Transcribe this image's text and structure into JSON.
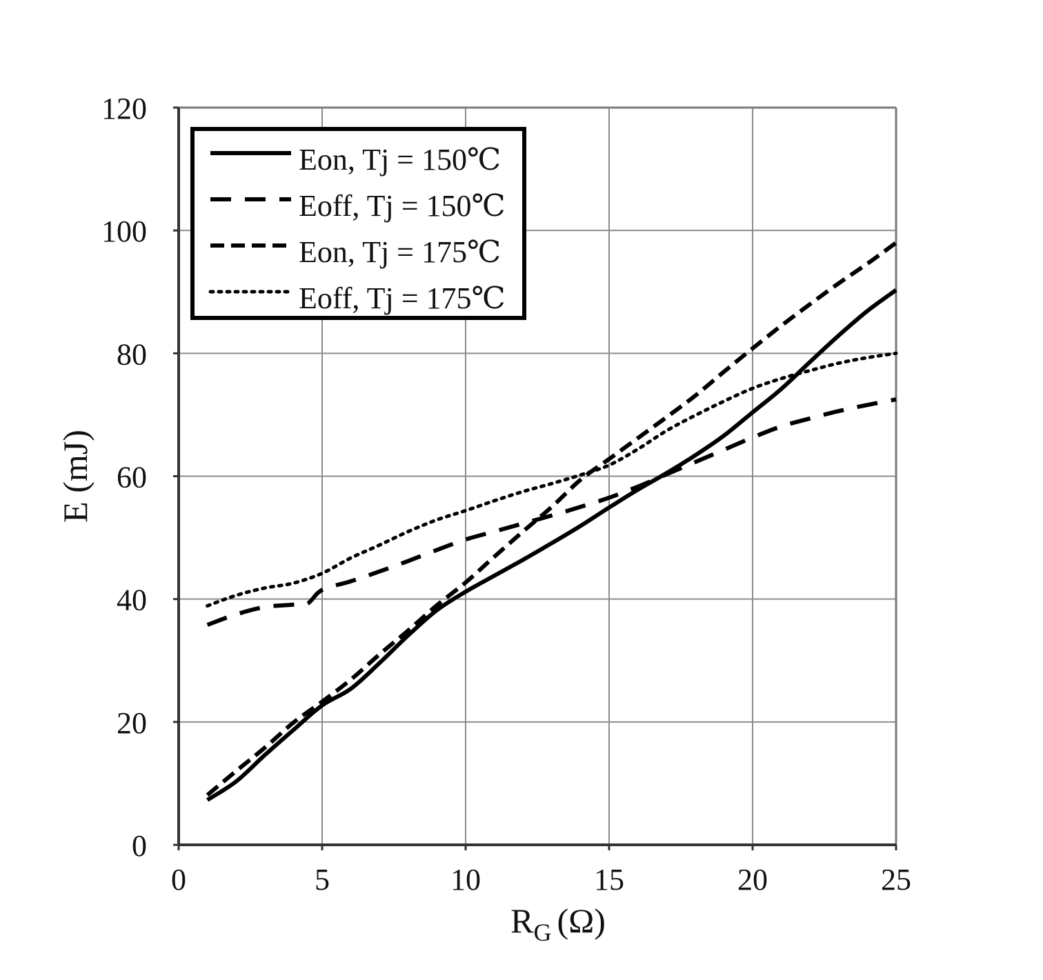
{
  "chart_data": {
    "type": "line",
    "title": "",
    "xlabel": "R",
    "xlabel_sub": "G",
    "xlabel_unit": "(Ω)",
    "ylabel": "E (mJ)",
    "xlim": [
      0,
      25
    ],
    "ylim": [
      0,
      120
    ],
    "xticks": [
      0,
      5,
      10,
      15,
      20,
      25
    ],
    "yticks": [
      0,
      20,
      40,
      60,
      80,
      100,
      120
    ],
    "xtick_labels": [
      "0",
      "5",
      "10",
      "15",
      "20",
      "25"
    ],
    "ytick_labels": [
      "0",
      "20",
      "40",
      "60",
      "80",
      "100",
      "120"
    ],
    "grid": true,
    "legend_position": "top-left",
    "series": [
      {
        "name": "Eon, Tj = 150℃",
        "style": "solid",
        "color": "#000000",
        "x": [
          1,
          2,
          3,
          4,
          5,
          6,
          7,
          8,
          9,
          10,
          11,
          12,
          13,
          14,
          15,
          16,
          17,
          18,
          19,
          20,
          21,
          22,
          23,
          24,
          25
        ],
        "y": [
          7.3,
          10.3,
          14.6,
          18.7,
          22.7,
          25.4,
          29.6,
          34.1,
          38.2,
          41.2,
          43.8,
          46.4,
          49.1,
          51.9,
          54.9,
          57.8,
          60.5,
          63.4,
          66.6,
          70.4,
          74.2,
          78.6,
          82.9,
          86.9,
          90.3
        ]
      },
      {
        "name": "Eoff, Tj = 150℃",
        "style": "long-dash",
        "color": "#000000",
        "x": [
          1,
          2,
          3,
          4,
          4.5,
          5,
          6,
          7,
          8,
          9,
          10,
          11,
          12,
          13,
          14,
          15,
          16,
          17,
          18,
          19,
          20,
          21,
          22,
          23,
          24,
          25
        ],
        "y": [
          35.8,
          37.5,
          38.7,
          39.1,
          39.3,
          41.5,
          42.9,
          44.5,
          46.2,
          48.0,
          49.7,
          51.0,
          52.3,
          53.6,
          55.0,
          56.5,
          58.3,
          60.3,
          62.3,
          64.3,
          66.3,
          68.1,
          69.4,
          70.6,
          71.6,
          72.5
        ]
      },
      {
        "name": "Eon, Tj = 175℃",
        "style": "short-dash",
        "color": "#000000",
        "x": [
          1,
          2,
          3,
          4,
          5,
          6,
          7,
          8,
          9,
          10,
          11,
          12,
          13,
          14,
          15,
          16,
          17,
          18,
          19,
          20,
          21,
          22,
          23,
          24,
          25
        ],
        "y": [
          8.1,
          12.0,
          15.8,
          19.9,
          23.3,
          26.9,
          31.0,
          34.9,
          39.0,
          42.7,
          46.9,
          51.0,
          55.0,
          59.4,
          62.8,
          66.2,
          69.6,
          73.1,
          77.0,
          80.8,
          84.5,
          88.0,
          91.4,
          94.6,
          98.0
        ]
      },
      {
        "name": "Eoff, Tj = 175℃",
        "style": "dotted",
        "color": "#000000",
        "x": [
          1,
          2,
          3,
          4,
          5,
          6,
          7,
          8,
          9,
          10,
          11,
          12,
          13,
          14,
          15,
          16,
          17,
          18,
          19,
          20,
          21,
          22,
          23,
          24,
          25
        ],
        "y": [
          38.9,
          40.6,
          41.8,
          42.6,
          44.2,
          46.7,
          48.8,
          51.0,
          52.9,
          54.4,
          56.0,
          57.5,
          58.8,
          60.2,
          61.8,
          64.4,
          67.4,
          69.9,
          72.2,
          74.3,
          75.9,
          77.2,
          78.4,
          79.3,
          80.0
        ]
      }
    ]
  }
}
